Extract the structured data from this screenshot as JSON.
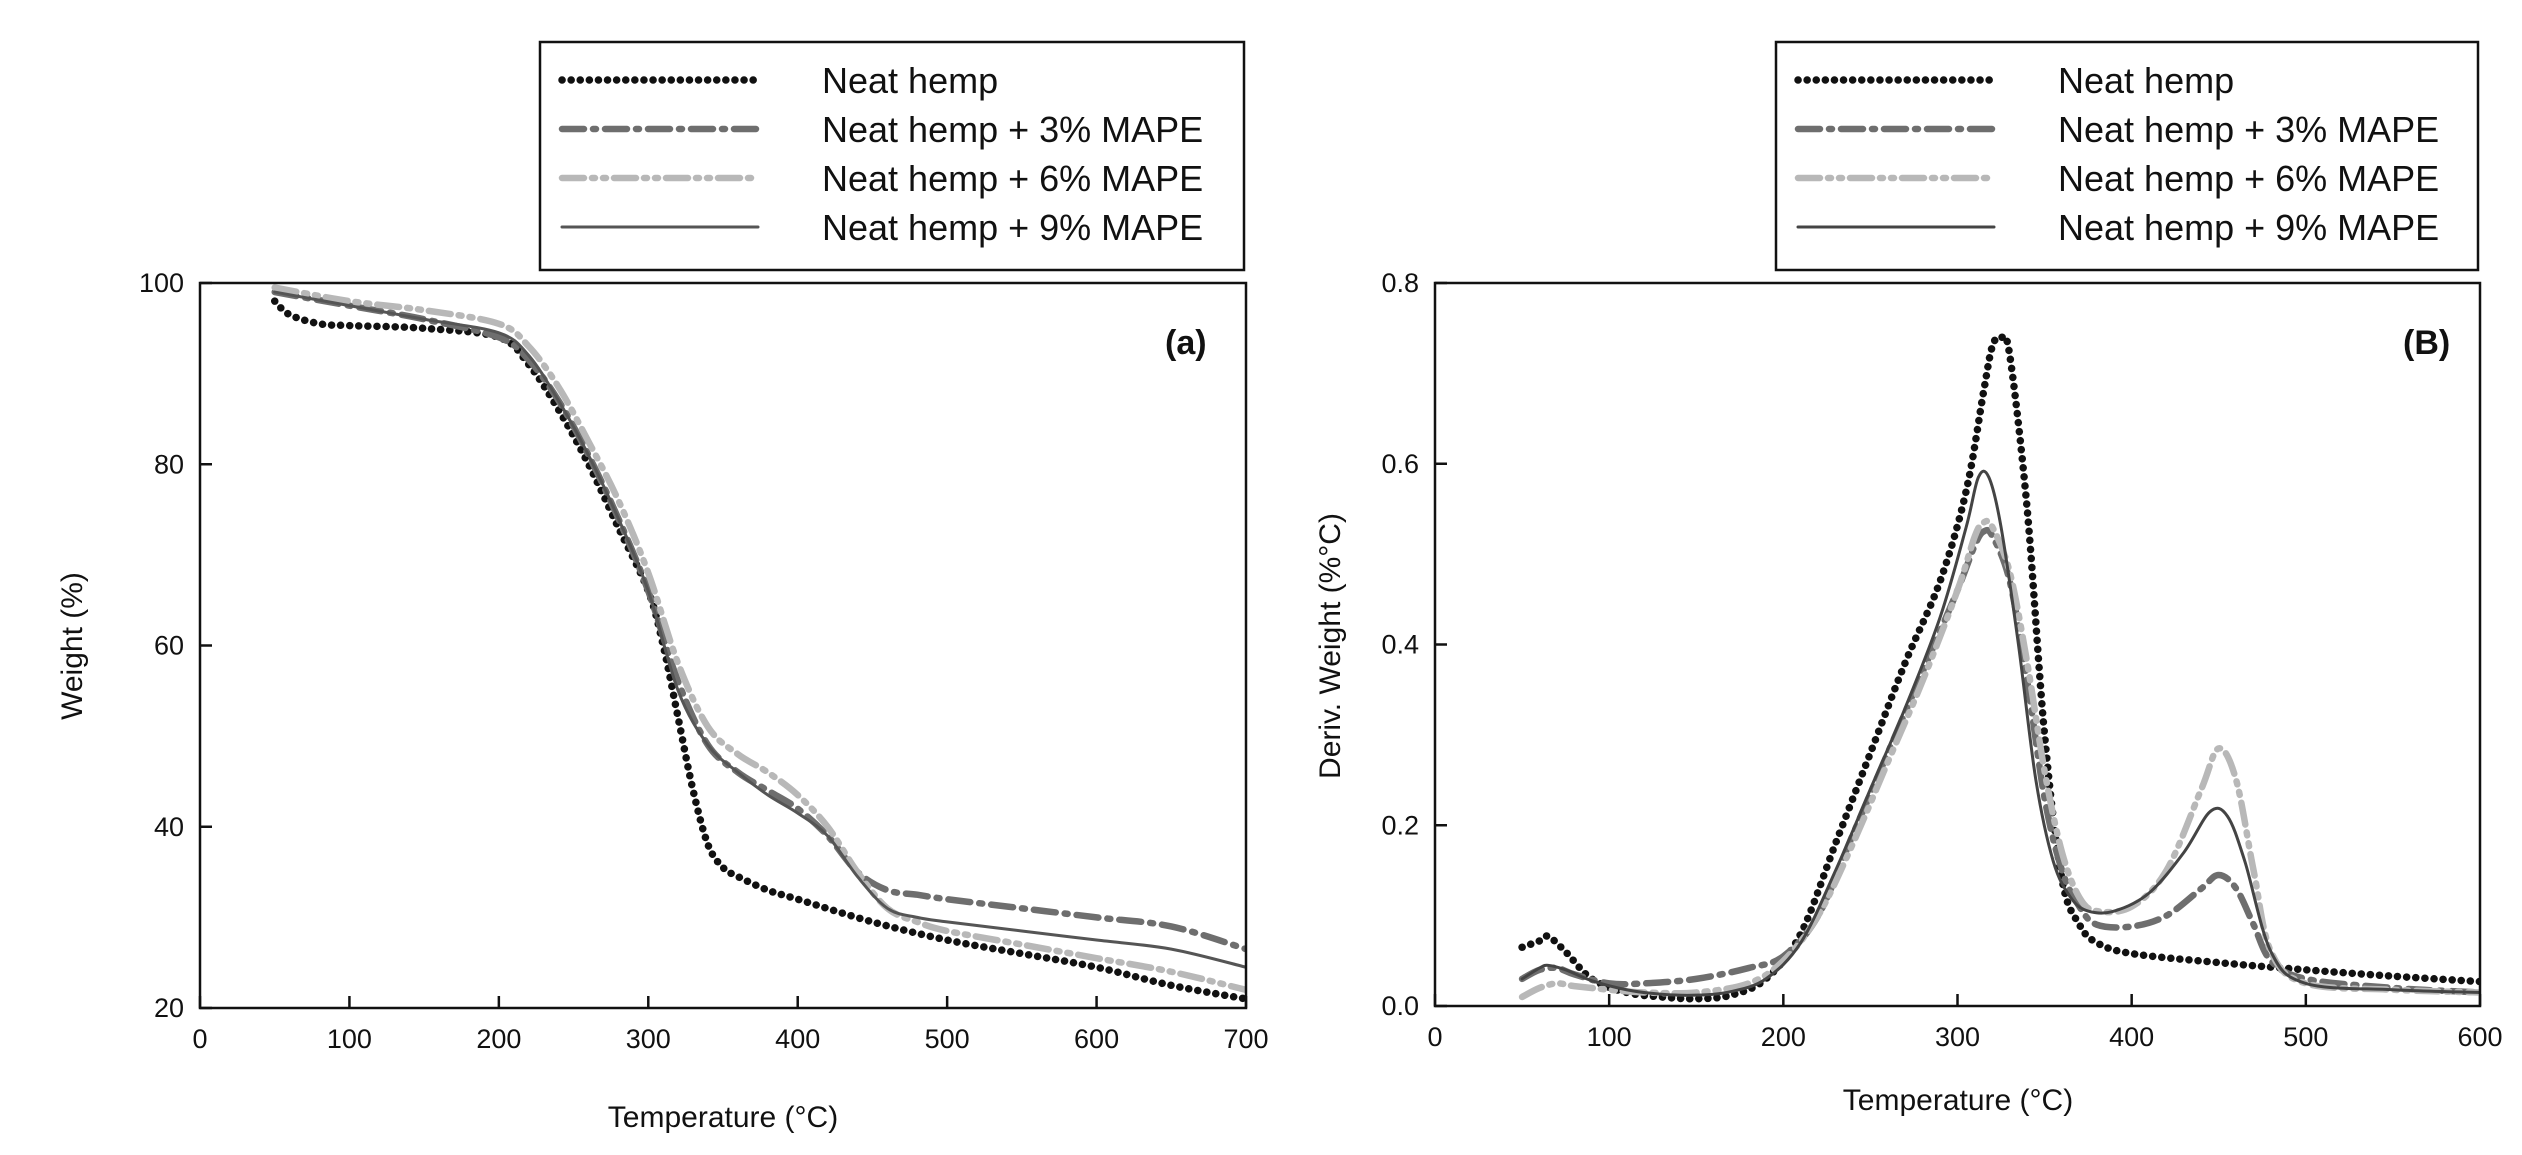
{
  "chart_data": [
    {
      "type": "line",
      "panel_label": "(a)",
      "xlabel": "Temperature (°C)",
      "ylabel": "Weight (%)",
      "xlim": [
        0,
        700
      ],
      "ylim": [
        20,
        100
      ],
      "xticks": [
        0,
        100,
        200,
        300,
        400,
        500,
        600,
        700
      ],
      "yticks": [
        20,
        40,
        60,
        80,
        100
      ],
      "grid": false,
      "legend_position": "top-right, above plot",
      "series": [
        {
          "name": "Neat hemp",
          "style": "dotted",
          "color": "#111111",
          "x": [
            50,
            60,
            80,
            100,
            150,
            200,
            220,
            240,
            260,
            280,
            300,
            310,
            320,
            330,
            340,
            350,
            360,
            380,
            400,
            450,
            500,
            550,
            600,
            650,
            700
          ],
          "y": [
            98,
            96.5,
            95.5,
            95.3,
            95,
            94,
            91,
            86,
            80,
            73,
            66,
            60,
            52,
            44,
            38,
            35.5,
            34.5,
            33,
            32,
            29.5,
            27.5,
            26,
            24.5,
            22.5,
            21
          ]
        },
        {
          "name": "Neat hemp + 3% MAPE",
          "style": "dashdot",
          "color": "#6e6e6e",
          "x": [
            50,
            100,
            150,
            200,
            220,
            240,
            260,
            280,
            300,
            320,
            340,
            360,
            380,
            400,
            420,
            440,
            460,
            480,
            500,
            550,
            600,
            650,
            700
          ],
          "y": [
            99,
            97.5,
            96,
            94,
            91.5,
            87,
            81,
            74,
            66,
            56,
            49,
            46,
            44,
            42,
            39,
            35,
            33,
            32.5,
            32,
            31,
            30,
            29,
            26.5
          ]
        },
        {
          "name": "Neat hemp + 6% MAPE",
          "style": "dashdotdot",
          "color": "#b8b8b8",
          "x": [
            50,
            100,
            150,
            200,
            220,
            240,
            260,
            280,
            300,
            320,
            340,
            360,
            380,
            400,
            420,
            440,
            460,
            480,
            500,
            550,
            600,
            650,
            700
          ],
          "y": [
            99.5,
            98,
            97,
            95.5,
            93,
            88.5,
            82.5,
            76,
            68,
            58,
            51,
            48,
            46,
            43.5,
            40,
            35,
            31,
            29.5,
            28.5,
            27,
            25.5,
            24,
            22
          ]
        },
        {
          "name": "Neat hemp + 9% MAPE",
          "style": "solid",
          "color": "#555555",
          "x": [
            50,
            100,
            150,
            200,
            220,
            240,
            260,
            280,
            300,
            320,
            340,
            360,
            380,
            400,
            420,
            440,
            460,
            480,
            500,
            550,
            600,
            650,
            700
          ],
          "y": [
            99,
            97.5,
            96,
            94.5,
            92,
            87,
            81,
            74,
            66,
            55,
            49,
            46,
            43.5,
            41.5,
            39,
            34.5,
            31,
            30,
            29.5,
            28.5,
            27.5,
            26.5,
            24.5
          ]
        }
      ]
    },
    {
      "type": "line",
      "panel_label": "(B)",
      "xlabel": "Temperature (°C)",
      "ylabel": "Deriv. Weight (%°C)",
      "xlim": [
        0,
        600
      ],
      "ylim": [
        0.0,
        0.8
      ],
      "xticks": [
        0,
        100,
        200,
        300,
        400,
        500,
        600
      ],
      "yticks": [
        0.0,
        0.2,
        0.4,
        0.6,
        0.8
      ],
      "ytick_labels": [
        "0.0",
        "0.2",
        "0.4",
        "0.6",
        "0.8"
      ],
      "grid": false,
      "legend_position": "top-right, above plot",
      "series": [
        {
          "name": "Neat hemp",
          "style": "dotted",
          "color": "#111111",
          "x": [
            50,
            60,
            65,
            75,
            90,
            110,
            130,
            150,
            170,
            190,
            210,
            230,
            250,
            270,
            290,
            305,
            315,
            320,
            325,
            330,
            340,
            350,
            360,
            370,
            380,
            400,
            450,
            500,
            550,
            600
          ],
          "y": [
            0.065,
            0.072,
            0.077,
            0.06,
            0.03,
            0.015,
            0.01,
            0.008,
            0.012,
            0.03,
            0.08,
            0.18,
            0.28,
            0.38,
            0.47,
            0.57,
            0.68,
            0.73,
            0.74,
            0.72,
            0.55,
            0.3,
            0.14,
            0.09,
            0.07,
            0.058,
            0.048,
            0.04,
            0.033,
            0.027
          ]
        },
        {
          "name": "Neat hemp + 3% MAPE",
          "style": "dashdot",
          "color": "#6e6e6e",
          "x": [
            50,
            60,
            70,
            80,
            100,
            120,
            150,
            180,
            200,
            220,
            240,
            260,
            280,
            300,
            310,
            315,
            320,
            330,
            340,
            350,
            360,
            370,
            380,
            400,
            420,
            440,
            450,
            460,
            470,
            480,
            500,
            550,
            600
          ],
          "y": [
            0.03,
            0.04,
            0.042,
            0.035,
            0.025,
            0.025,
            0.03,
            0.042,
            0.055,
            0.1,
            0.19,
            0.28,
            0.37,
            0.46,
            0.51,
            0.525,
            0.52,
            0.47,
            0.36,
            0.23,
            0.15,
            0.11,
            0.09,
            0.088,
            0.1,
            0.13,
            0.145,
            0.13,
            0.09,
            0.05,
            0.03,
            0.02,
            0.015
          ]
        },
        {
          "name": "Neat hemp + 6% MAPE",
          "style": "dashdotdot",
          "color": "#b8b8b8",
          "x": [
            50,
            60,
            70,
            80,
            100,
            120,
            150,
            180,
            200,
            220,
            240,
            260,
            280,
            300,
            310,
            315,
            320,
            330,
            340,
            350,
            360,
            370,
            380,
            400,
            420,
            440,
            450,
            460,
            470,
            480,
            500,
            550,
            600
          ],
          "y": [
            0.01,
            0.02,
            0.025,
            0.022,
            0.018,
            0.015,
            0.015,
            0.025,
            0.05,
            0.1,
            0.18,
            0.27,
            0.36,
            0.46,
            0.52,
            0.535,
            0.53,
            0.48,
            0.38,
            0.26,
            0.17,
            0.12,
            0.105,
            0.11,
            0.15,
            0.24,
            0.285,
            0.25,
            0.15,
            0.06,
            0.025,
            0.018,
            0.015
          ]
        },
        {
          "name": "Neat hemp + 9% MAPE",
          "style": "solid",
          "color": "#444444",
          "x": [
            50,
            60,
            65,
            75,
            90,
            110,
            130,
            150,
            170,
            190,
            210,
            230,
            250,
            270,
            290,
            305,
            312,
            318,
            325,
            335,
            345,
            355,
            365,
            375,
            390,
            410,
            430,
            445,
            455,
            465,
            480,
            500,
            550,
            600
          ],
          "y": [
            0.03,
            0.042,
            0.045,
            0.04,
            0.028,
            0.018,
            0.013,
            0.012,
            0.016,
            0.03,
            0.07,
            0.15,
            0.24,
            0.33,
            0.43,
            0.53,
            0.585,
            0.585,
            0.53,
            0.4,
            0.25,
            0.16,
            0.12,
            0.105,
            0.105,
            0.125,
            0.17,
            0.215,
            0.21,
            0.16,
            0.06,
            0.025,
            0.018,
            0.015
          ]
        }
      ]
    }
  ]
}
